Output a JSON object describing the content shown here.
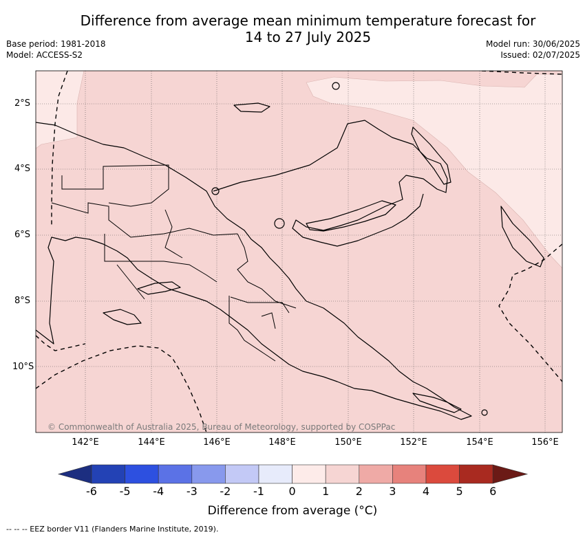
{
  "header": {
    "title_line1": "Difference from average mean minimum temperature forecast for",
    "title_line2": "14 to 27 July 2025",
    "base_period": "Base period: 1981-2018",
    "model": "Model: ACCESS-S2",
    "model_run": "Model run: 30/06/2025",
    "issued": "Issued: 02/07/2025"
  },
  "map": {
    "lon_range": [
      140.5,
      156.5
    ],
    "lat_range": [
      -12,
      -1
    ],
    "x_ticks": [
      "142°E",
      "144°E",
      "146°E",
      "148°E",
      "150°E",
      "152°E",
      "154°E",
      "156°E"
    ],
    "y_ticks": [
      "2°S",
      "4°S",
      "6°S",
      "8°S",
      "10°S"
    ],
    "gridlines": true,
    "colors": {
      "anomaly_1_2": "#f6d5d3",
      "anomaly_0_1": "#fce9e7",
      "coast": "#000000",
      "eez": "#000000"
    },
    "copyright": "© Commonwealth of Australia 2025, Bureau of Meteorology, supported by COSPPac"
  },
  "colorbar": {
    "label": "Difference from average (°C)",
    "ticks": [
      "-6",
      "-5",
      "-4",
      "-3",
      "-2",
      "-1",
      "0",
      "1",
      "2",
      "3",
      "4",
      "5",
      "6"
    ],
    "colors": [
      "#1c2e80",
      "#2342b5",
      "#2d50e0",
      "#5b72e6",
      "#8899ed",
      "#c3c9f6",
      "#e7ebfb",
      "#fdebe9",
      "#f6d5d3",
      "#efaaa6",
      "#e7827c",
      "#db4a3d",
      "#a92a20",
      "#6b1a16"
    ]
  },
  "footer": "--  --  -- EEZ border V11 (Flanders Marine Institute, 2019)."
}
